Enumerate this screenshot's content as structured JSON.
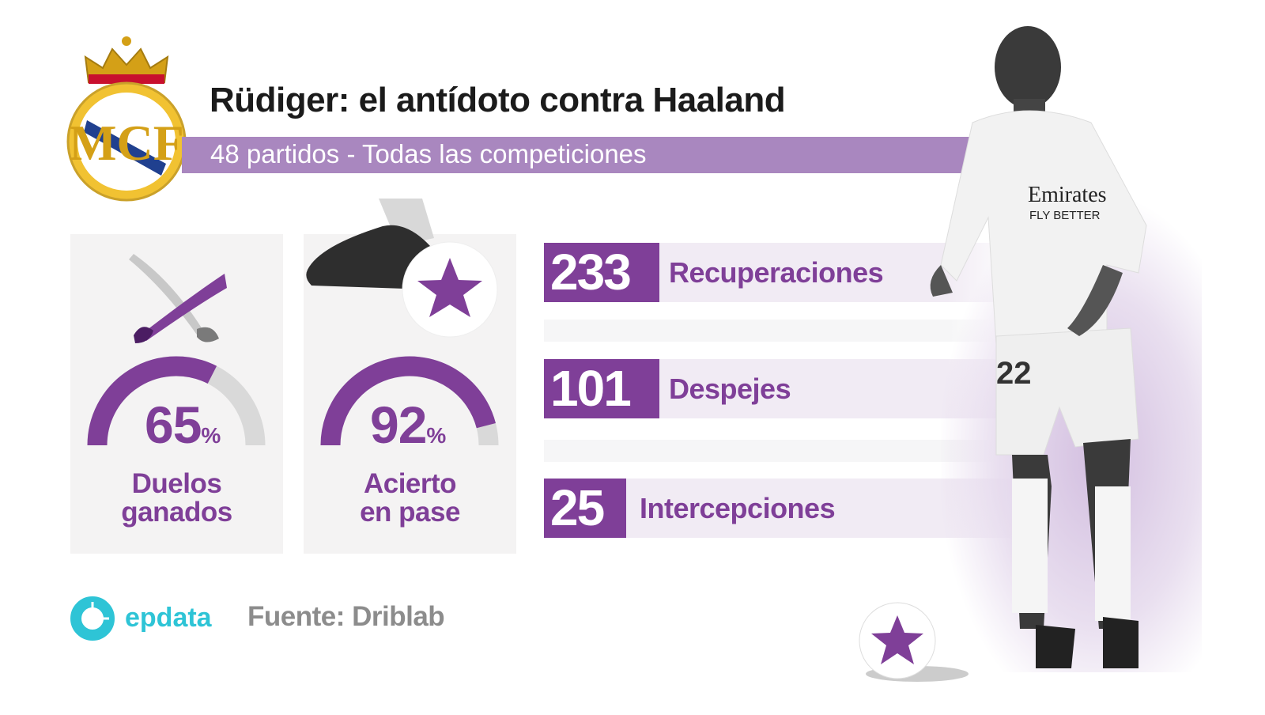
{
  "header": {
    "title": "Rüdiger: el antídoto contra Haaland",
    "subtitle": "48 partidos - Todas las competiciones"
  },
  "club_logo": {
    "text": "MCF",
    "icon": "real-madrid-crest"
  },
  "gauges": [
    {
      "value": 65,
      "value_text": "65",
      "unit": "%",
      "label_line1": "Duelos",
      "label_line2": "ganados",
      "icon": "crossed-swords-icon"
    },
    {
      "value": 92,
      "value_text": "92",
      "unit": "%",
      "label_line1": "Acierto",
      "label_line2": "en pase",
      "icon": "boot-and-ball-icon"
    }
  ],
  "stats": [
    {
      "value": "233",
      "label": "Recuperaciones"
    },
    {
      "value": "101",
      "label": "Despejes"
    },
    {
      "value": "25",
      "label": "Intercepciones"
    }
  ],
  "player_photo": {
    "jersey_sponsor": "Emirates",
    "jersey_sponsor_tagline": "FLY BETTER",
    "number": "22"
  },
  "footer": {
    "brand": "epdata",
    "source": "Fuente: Driblab"
  },
  "colors": {
    "accent": "#7f3f98",
    "subtitle_bar": "#a987bf",
    "gauge_track": "#d9d9d9",
    "card_bg": "#f4f3f3",
    "brand": "#2ec4d6",
    "source_text": "#8c8c8c"
  }
}
